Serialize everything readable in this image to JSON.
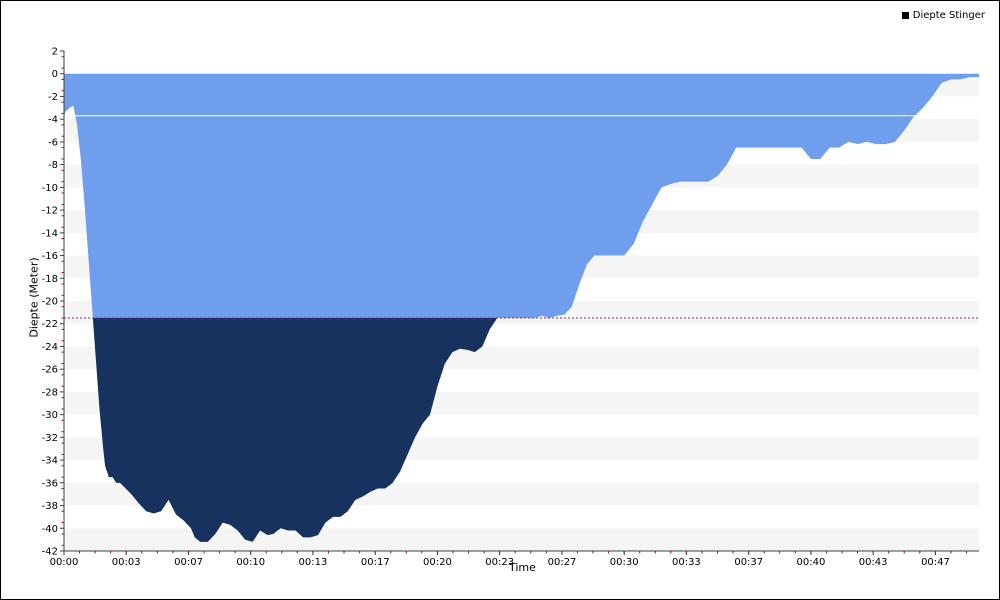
{
  "chart_data": {
    "type": "area",
    "title": "",
    "xlabel": "Time",
    "ylabel": "Diepte (Meter)",
    "legend": {
      "position": "top-right",
      "label": "Diepte Stinger",
      "color": "#000000"
    },
    "xlim": [
      0,
      49
    ],
    "ylim": [
      -42,
      2
    ],
    "yticks": [
      2,
      0,
      -2,
      -4,
      -6,
      -8,
      -10,
      -12,
      -14,
      -16,
      -18,
      -20,
      -22,
      -24,
      -26,
      -28,
      -30,
      -32,
      -34,
      -36,
      -38,
      -40,
      -42
    ],
    "xticks": [
      {
        "v": 0,
        "label": "00:00"
      },
      {
        "v": 3.33,
        "label": "00:03"
      },
      {
        "v": 6.67,
        "label": "00:07"
      },
      {
        "v": 10,
        "label": "00:10"
      },
      {
        "v": 13.33,
        "label": "00:13"
      },
      {
        "v": 16.67,
        "label": "00:17"
      },
      {
        "v": 20,
        "label": "00:20"
      },
      {
        "v": 23.33,
        "label": "00:23"
      },
      {
        "v": 26.67,
        "label": "00:27"
      },
      {
        "v": 30,
        "label": "00:30"
      },
      {
        "v": 33.33,
        "label": "00:33"
      },
      {
        "v": 36.67,
        "label": "00:37"
      },
      {
        "v": 40,
        "label": "00:40"
      },
      {
        "v": 43.33,
        "label": "00:43"
      },
      {
        "v": 46.67,
        "label": "00:47"
      }
    ],
    "grid": "horizontal bands",
    "reference_lines": [
      {
        "y": -3.7,
        "style": "solid",
        "color": "#ffffff"
      },
      {
        "y": -21.5,
        "style": "dashed",
        "color": "#7b2d8e"
      }
    ],
    "threshold": -21.5,
    "colors": {
      "upper_fill": "#6f9fec",
      "lower_fill": "#17325f",
      "band": "#f5f5f5",
      "axis": "#404040",
      "tick_red": "#cc0000"
    },
    "series": [
      {
        "name": "Diepte Stinger",
        "x": [
          0,
          0.1,
          0.3,
          0.5,
          0.7,
          0.9,
          1.1,
          1.3,
          1.5,
          1.7,
          1.9,
          2.1,
          2.2,
          2.4,
          2.6,
          2.8,
          3.0,
          3.3,
          3.6,
          4.0,
          4.4,
          4.8,
          5.2,
          5.6,
          6.0,
          6.4,
          6.8,
          7.0,
          7.3,
          7.7,
          8.1,
          8.5,
          8.9,
          9.3,
          9.7,
          10.1,
          10.5,
          10.9,
          11.2,
          11.6,
          12.0,
          12.4,
          12.8,
          13.2,
          13.6,
          14.0,
          14.4,
          14.8,
          15.2,
          15.6,
          16.0,
          16.4,
          16.8,
          17.2,
          17.6,
          18.0,
          18.4,
          18.8,
          19.2,
          19.6,
          20.0,
          20.4,
          20.8,
          21.2,
          21.6,
          22.0,
          22.4,
          22.8,
          23.2,
          23.6,
          24.0,
          24.4,
          24.8,
          25.2,
          25.6,
          26.0,
          26.4,
          26.8,
          27.2,
          27.6,
          28.0,
          28.4,
          28.8,
          29.2,
          29.6,
          30.0,
          30.5,
          31.0,
          31.5,
          32.0,
          32.5,
          33.0,
          33.5,
          34.0,
          34.5,
          35.0,
          35.5,
          36.0,
          36.5,
          37.0,
          37.5,
          38.0,
          38.5,
          39.0,
          39.5,
          40.0,
          40.5,
          41.0,
          41.5,
          42.0,
          42.5,
          43.0,
          43.5,
          44.0,
          44.5,
          45.0,
          45.5,
          46.0,
          46.5,
          47.0,
          47.5,
          48.0,
          48.5,
          49.0
        ],
        "y": [
          -3.7,
          -3.3,
          -3.0,
          -2.8,
          -4.5,
          -7.5,
          -11.5,
          -16.0,
          -20.5,
          -25.0,
          -29.5,
          -33.0,
          -34.5,
          -35.5,
          -35.5,
          -36.0,
          -36.0,
          -36.5,
          -37.0,
          -37.8,
          -38.5,
          -38.7,
          -38.5,
          -37.5,
          -38.8,
          -39.3,
          -40.0,
          -40.8,
          -41.2,
          -41.2,
          -40.5,
          -39.5,
          -39.7,
          -40.2,
          -41.0,
          -41.2,
          -40.2,
          -40.6,
          -40.5,
          -40.0,
          -40.2,
          -40.2,
          -40.8,
          -40.8,
          -40.6,
          -39.5,
          -39.0,
          -39.0,
          -38.5,
          -37.5,
          -37.2,
          -36.8,
          -36.5,
          -36.5,
          -36.0,
          -35.0,
          -33.5,
          -32.0,
          -30.8,
          -30.0,
          -27.5,
          -25.5,
          -24.5,
          -24.2,
          -24.3,
          -24.5,
          -24.0,
          -22.5,
          -21.5,
          -21.5,
          -21.5,
          -21.5,
          -21.5,
          -21.5,
          -21.3,
          -21.5,
          -21.3,
          -21.2,
          -20.5,
          -18.5,
          -16.8,
          -16.0,
          -16.0,
          -16.0,
          -16.0,
          -16.0,
          -15.0,
          -13.0,
          -11.5,
          -10.0,
          -9.7,
          -9.5,
          -9.5,
          -9.5,
          -9.5,
          -9.0,
          -8.0,
          -6.5,
          -6.5,
          -6.5,
          -6.5,
          -6.5,
          -6.5,
          -6.5,
          -6.5,
          -7.5,
          -7.5,
          -6.5,
          -6.5,
          -6.0,
          -6.2,
          -6.0,
          -6.2,
          -6.2,
          -6.0,
          -5.0,
          -3.8,
          -3.0,
          -2.0,
          -0.8,
          -0.5,
          -0.5,
          -0.3,
          -0.3
        ]
      }
    ]
  }
}
